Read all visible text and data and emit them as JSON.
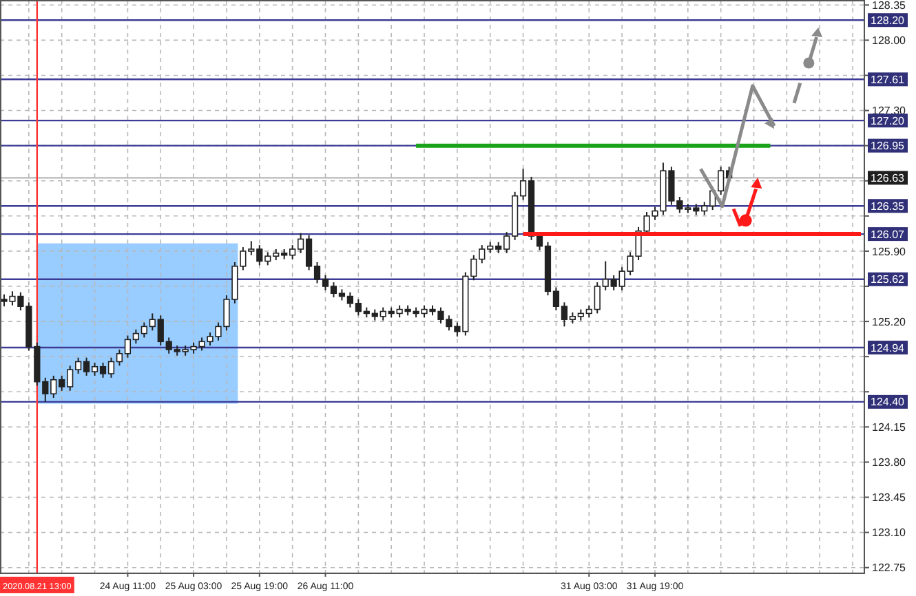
{
  "chart_data": {
    "type": "candlestick",
    "categories": [
      null,
      null,
      null,
      null,
      "2020.08.21 13:00",
      null,
      null,
      null,
      null,
      null,
      null,
      null,
      null,
      null,
      null,
      "24 Aug 11:00",
      null,
      null,
      null,
      null,
      null,
      null,
      null,
      "25 Aug 03:00",
      null,
      null,
      null,
      null,
      null,
      null,
      null,
      "25 Aug 19:00",
      null,
      null,
      null,
      null,
      null,
      null,
      null,
      "26 Aug 11:00",
      null,
      null,
      null,
      null,
      null,
      null,
      null,
      null,
      null,
      null,
      null,
      null,
      null,
      null,
      null,
      null,
      null,
      null,
      null,
      null,
      null,
      null,
      null,
      null,
      null,
      null,
      null,
      null,
      null,
      null,
      null,
      "31 Aug 03:00",
      null,
      null,
      null,
      null,
      null,
      null,
      null,
      "31 Aug 19:00",
      null,
      null,
      null,
      null,
      null,
      null,
      null,
      null,
      null,
      null,
      null,
      null,
      null,
      null,
      null,
      null,
      null,
      null,
      null,
      null,
      null,
      null,
      null,
      null,
      null
    ],
    "ohlc": [
      [
        125.42,
        125.47,
        125.35,
        125.4
      ],
      [
        125.4,
        125.5,
        125.36,
        125.45
      ],
      [
        125.45,
        125.49,
        125.31,
        125.35
      ],
      [
        125.35,
        125.39,
        124.91,
        124.95
      ],
      [
        124.95,
        124.99,
        124.56,
        124.6
      ],
      [
        124.6,
        124.64,
        124.4,
        124.48
      ],
      [
        124.48,
        124.66,
        124.44,
        124.62
      ],
      [
        124.62,
        124.66,
        124.51,
        124.55
      ],
      [
        124.55,
        124.76,
        124.51,
        124.72
      ],
      [
        124.72,
        124.84,
        124.68,
        124.8
      ],
      [
        124.8,
        124.84,
        124.66,
        124.7
      ],
      [
        124.7,
        124.79,
        124.66,
        124.75
      ],
      [
        124.75,
        124.79,
        124.64,
        124.68
      ],
      [
        124.68,
        124.84,
        124.64,
        124.8
      ],
      [
        124.8,
        124.92,
        124.76,
        124.88
      ],
      [
        124.88,
        125.06,
        124.84,
        125.02
      ],
      [
        125.02,
        125.12,
        124.98,
        125.08
      ],
      [
        125.08,
        125.19,
        125.04,
        125.15
      ],
      [
        125.15,
        125.28,
        125.11,
        125.22
      ],
      [
        125.22,
        125.26,
        124.96,
        125.0
      ],
      [
        125.0,
        125.04,
        124.88,
        124.92
      ],
      [
        124.92,
        124.96,
        124.86,
        124.9
      ],
      [
        124.9,
        124.96,
        124.86,
        124.92
      ],
      [
        124.92,
        124.99,
        124.88,
        124.95
      ],
      [
        124.95,
        125.04,
        124.91,
        125.0
      ],
      [
        125.0,
        125.09,
        124.96,
        125.05
      ],
      [
        125.05,
        125.19,
        125.01,
        125.15
      ],
      [
        125.15,
        125.46,
        125.11,
        125.42
      ],
      [
        125.42,
        125.79,
        125.38,
        125.75
      ],
      [
        125.75,
        125.94,
        125.71,
        125.9
      ],
      [
        125.9,
        126.0,
        125.86,
        125.92
      ],
      [
        125.92,
        125.96,
        125.76,
        125.8
      ],
      [
        125.8,
        125.89,
        125.76,
        125.85
      ],
      [
        125.85,
        125.92,
        125.81,
        125.88
      ],
      [
        125.88,
        125.92,
        125.82,
        125.86
      ],
      [
        125.86,
        125.96,
        125.82,
        125.92
      ],
      [
        125.92,
        126.08,
        125.88,
        126.02
      ],
      [
        126.02,
        126.06,
        125.71,
        125.75
      ],
      [
        125.75,
        125.79,
        125.58,
        125.62
      ],
      [
        125.62,
        125.66,
        125.51,
        125.55
      ],
      [
        125.55,
        125.59,
        125.44,
        125.48
      ],
      [
        125.48,
        125.52,
        125.41,
        125.45
      ],
      [
        125.45,
        125.49,
        125.34,
        125.38
      ],
      [
        125.38,
        125.42,
        125.26,
        125.3
      ],
      [
        125.3,
        125.34,
        125.24,
        125.28
      ],
      [
        125.28,
        125.32,
        125.21,
        125.25
      ],
      [
        125.25,
        125.34,
        125.21,
        125.3
      ],
      [
        125.3,
        125.34,
        125.24,
        125.28
      ],
      [
        125.28,
        125.36,
        125.24,
        125.32
      ],
      [
        125.32,
        125.36,
        125.26,
        125.3
      ],
      [
        125.3,
        125.34,
        125.24,
        125.28
      ],
      [
        125.28,
        125.36,
        125.24,
        125.32
      ],
      [
        125.32,
        125.36,
        125.26,
        125.3
      ],
      [
        125.3,
        125.34,
        125.18,
        125.22
      ],
      [
        125.22,
        125.26,
        125.11,
        125.15
      ],
      [
        125.15,
        125.19,
        125.05,
        125.1
      ],
      [
        125.1,
        125.69,
        125.06,
        125.65
      ],
      [
        125.65,
        125.86,
        125.61,
        125.82
      ],
      [
        125.82,
        125.96,
        125.78,
        125.92
      ],
      [
        125.92,
        125.99,
        125.88,
        125.95
      ],
      [
        125.95,
        125.99,
        125.88,
        125.92
      ],
      [
        125.92,
        126.09,
        125.88,
        126.05
      ],
      [
        126.05,
        126.49,
        126.01,
        126.45
      ],
      [
        126.45,
        126.72,
        126.41,
        126.6
      ],
      [
        126.6,
        126.64,
        126.01,
        126.05
      ],
      [
        126.05,
        126.09,
        125.91,
        125.95
      ],
      [
        125.95,
        125.99,
        125.46,
        125.5
      ],
      [
        125.5,
        125.54,
        125.31,
        125.35
      ],
      [
        125.35,
        125.39,
        125.15,
        125.22
      ],
      [
        125.22,
        125.29,
        125.18,
        125.25
      ],
      [
        125.25,
        125.32,
        125.21,
        125.28
      ],
      [
        125.28,
        125.36,
        125.24,
        125.32
      ],
      [
        125.32,
        125.59,
        125.28,
        125.55
      ],
      [
        125.55,
        125.8,
        125.51,
        125.62
      ],
      [
        125.62,
        125.66,
        125.51,
        125.55
      ],
      [
        125.55,
        125.74,
        125.51,
        125.7
      ],
      [
        125.7,
        125.89,
        125.66,
        125.85
      ],
      [
        125.85,
        126.14,
        125.81,
        126.1
      ],
      [
        126.1,
        126.29,
        126.06,
        126.25
      ],
      [
        126.25,
        126.34,
        126.21,
        126.3
      ],
      [
        126.3,
        126.78,
        126.26,
        126.7
      ],
      [
        126.7,
        126.74,
        126.36,
        126.4
      ],
      [
        126.4,
        126.44,
        126.28,
        126.32
      ],
      [
        126.32,
        126.37,
        126.28,
        126.33
      ],
      [
        126.33,
        126.37,
        126.26,
        126.3
      ],
      [
        126.3,
        126.39,
        126.26,
        126.35
      ],
      [
        126.35,
        126.54,
        126.31,
        126.5
      ],
      [
        126.5,
        126.74,
        126.46,
        126.7
      ],
      [
        126.7,
        126.74,
        126.59,
        126.63
      ],
      null,
      null,
      null,
      null,
      null,
      null,
      null,
      null,
      null,
      null,
      null,
      null,
      null,
      null,
      null,
      null
    ],
    "series": [
      {
        "type": "line",
        "color": "#1aa31a",
        "values": [
          null,
          null,
          null,
          null,
          null,
          null,
          null,
          null,
          null,
          null,
          null,
          null,
          null,
          null,
          null,
          null,
          null,
          null,
          null,
          null,
          null,
          null,
          null,
          null,
          null,
          null,
          null,
          null,
          null,
          null,
          null,
          null,
          null,
          null,
          null,
          null,
          null,
          null,
          null,
          null,
          null,
          null,
          null,
          null,
          null,
          null,
          null,
          null,
          null,
          null,
          126.95,
          126.95,
          126.95,
          126.95,
          126.95,
          126.95,
          126.95,
          126.95,
          126.95,
          126.95,
          126.95,
          126.95,
          126.95,
          126.95,
          126.95,
          126.95,
          126.95,
          126.95,
          126.95,
          126.95,
          126.95,
          126.95,
          126.95,
          126.95,
          126.95,
          126.95,
          126.95,
          126.95,
          126.95,
          126.95,
          126.95,
          126.95,
          126.95,
          126.95,
          126.95,
          126.95,
          126.95,
          126.95,
          126.95,
          126.95,
          126.95,
          126.95,
          126.95,
          126.95,
          null,
          null,
          null,
          null,
          null,
          null,
          null,
          null,
          null,
          null,
          null
        ]
      },
      {
        "type": "line",
        "color": "#ff1a1a",
        "values": [
          null,
          null,
          null,
          null,
          null,
          null,
          null,
          null,
          null,
          null,
          null,
          null,
          null,
          null,
          null,
          null,
          null,
          null,
          null,
          null,
          null,
          null,
          null,
          null,
          null,
          null,
          null,
          null,
          null,
          null,
          null,
          null,
          null,
          null,
          null,
          null,
          null,
          null,
          null,
          null,
          null,
          null,
          null,
          null,
          null,
          null,
          null,
          null,
          null,
          null,
          null,
          null,
          null,
          null,
          null,
          null,
          null,
          null,
          null,
          null,
          null,
          null,
          null,
          126.07,
          126.07,
          126.07,
          126.07,
          126.07,
          126.07,
          126.07,
          126.07,
          126.07,
          126.07,
          126.07,
          126.07,
          126.07,
          126.07,
          126.07,
          126.07,
          126.07,
          126.07,
          126.07,
          126.07,
          126.07,
          126.07,
          126.07,
          126.07,
          126.07,
          126.07,
          126.07,
          126.07,
          126.07,
          126.07,
          126.07,
          126.07,
          126.07,
          126.07,
          126.07,
          126.07,
          126.07,
          126.07,
          126.07,
          126.07,
          126.07,
          126.07
        ]
      }
    ],
    "ylim": [
      122.7,
      128.4
    ],
    "yticks": [
      122.75,
      {
        "value": 123.1,
        "label": "123.10"
      },
      123.45,
      {
        "value": 123.8,
        "label": "123.80"
      },
      124.15,
      {
        "value": 124.5,
        "label": null
      },
      {
        "value": 124.85,
        "label": null
      },
      {
        "value": 125.2,
        "label": "125.20"
      },
      {
        "value": 125.55,
        "label": null
      },
      {
        "value": 125.9,
        "label": "125.90"
      },
      {
        "value": 126.25,
        "label": null
      },
      {
        "value": 126.6,
        "label": null
      },
      {
        "value": 126.95,
        "label": null
      },
      {
        "value": 127.3,
        "label": "127.30"
      },
      {
        "value": 127.65,
        "label": null
      },
      {
        "value": 128,
        "label": "128.00"
      },
      128.35
    ],
    "grid": true,
    "ref_lines": [
      {
        "axis": "x",
        "value": "2020.08.21 13:00",
        "color": "#ff3333"
      },
      {
        "axis": "y",
        "value": 128.2,
        "label": "128.20",
        "color": "#3c3c96"
      },
      {
        "axis": "y",
        "value": 127.61,
        "label": "127.61",
        "color": "#3c3c96"
      },
      {
        "axis": "y",
        "value": 127.2,
        "label": "127.20",
        "color": "#3c3c96"
      },
      {
        "axis": "y",
        "value": 126.95,
        "label": "126.95",
        "color": "#3c3c96"
      },
      {
        "axis": "y",
        "value": 126.63,
        "label": "126.63",
        "color": "#b8b8b8"
      },
      {
        "axis": "y",
        "value": 126.35,
        "label": "126.35",
        "color": "#3c3c96"
      },
      {
        "axis": "y",
        "value": 126.07,
        "label": "126.07",
        "color": "#3c3c96"
      },
      {
        "axis": "y",
        "value": 125.62,
        "label": "125.62",
        "color": "#3c3c96"
      },
      {
        "axis": "y",
        "value": 124.94,
        "label": "124.94",
        "color": "#3c3c96"
      },
      {
        "axis": "y",
        "value": 124.4,
        "label": "124.40",
        "color": "#3c3c96"
      }
    ]
  }
}
